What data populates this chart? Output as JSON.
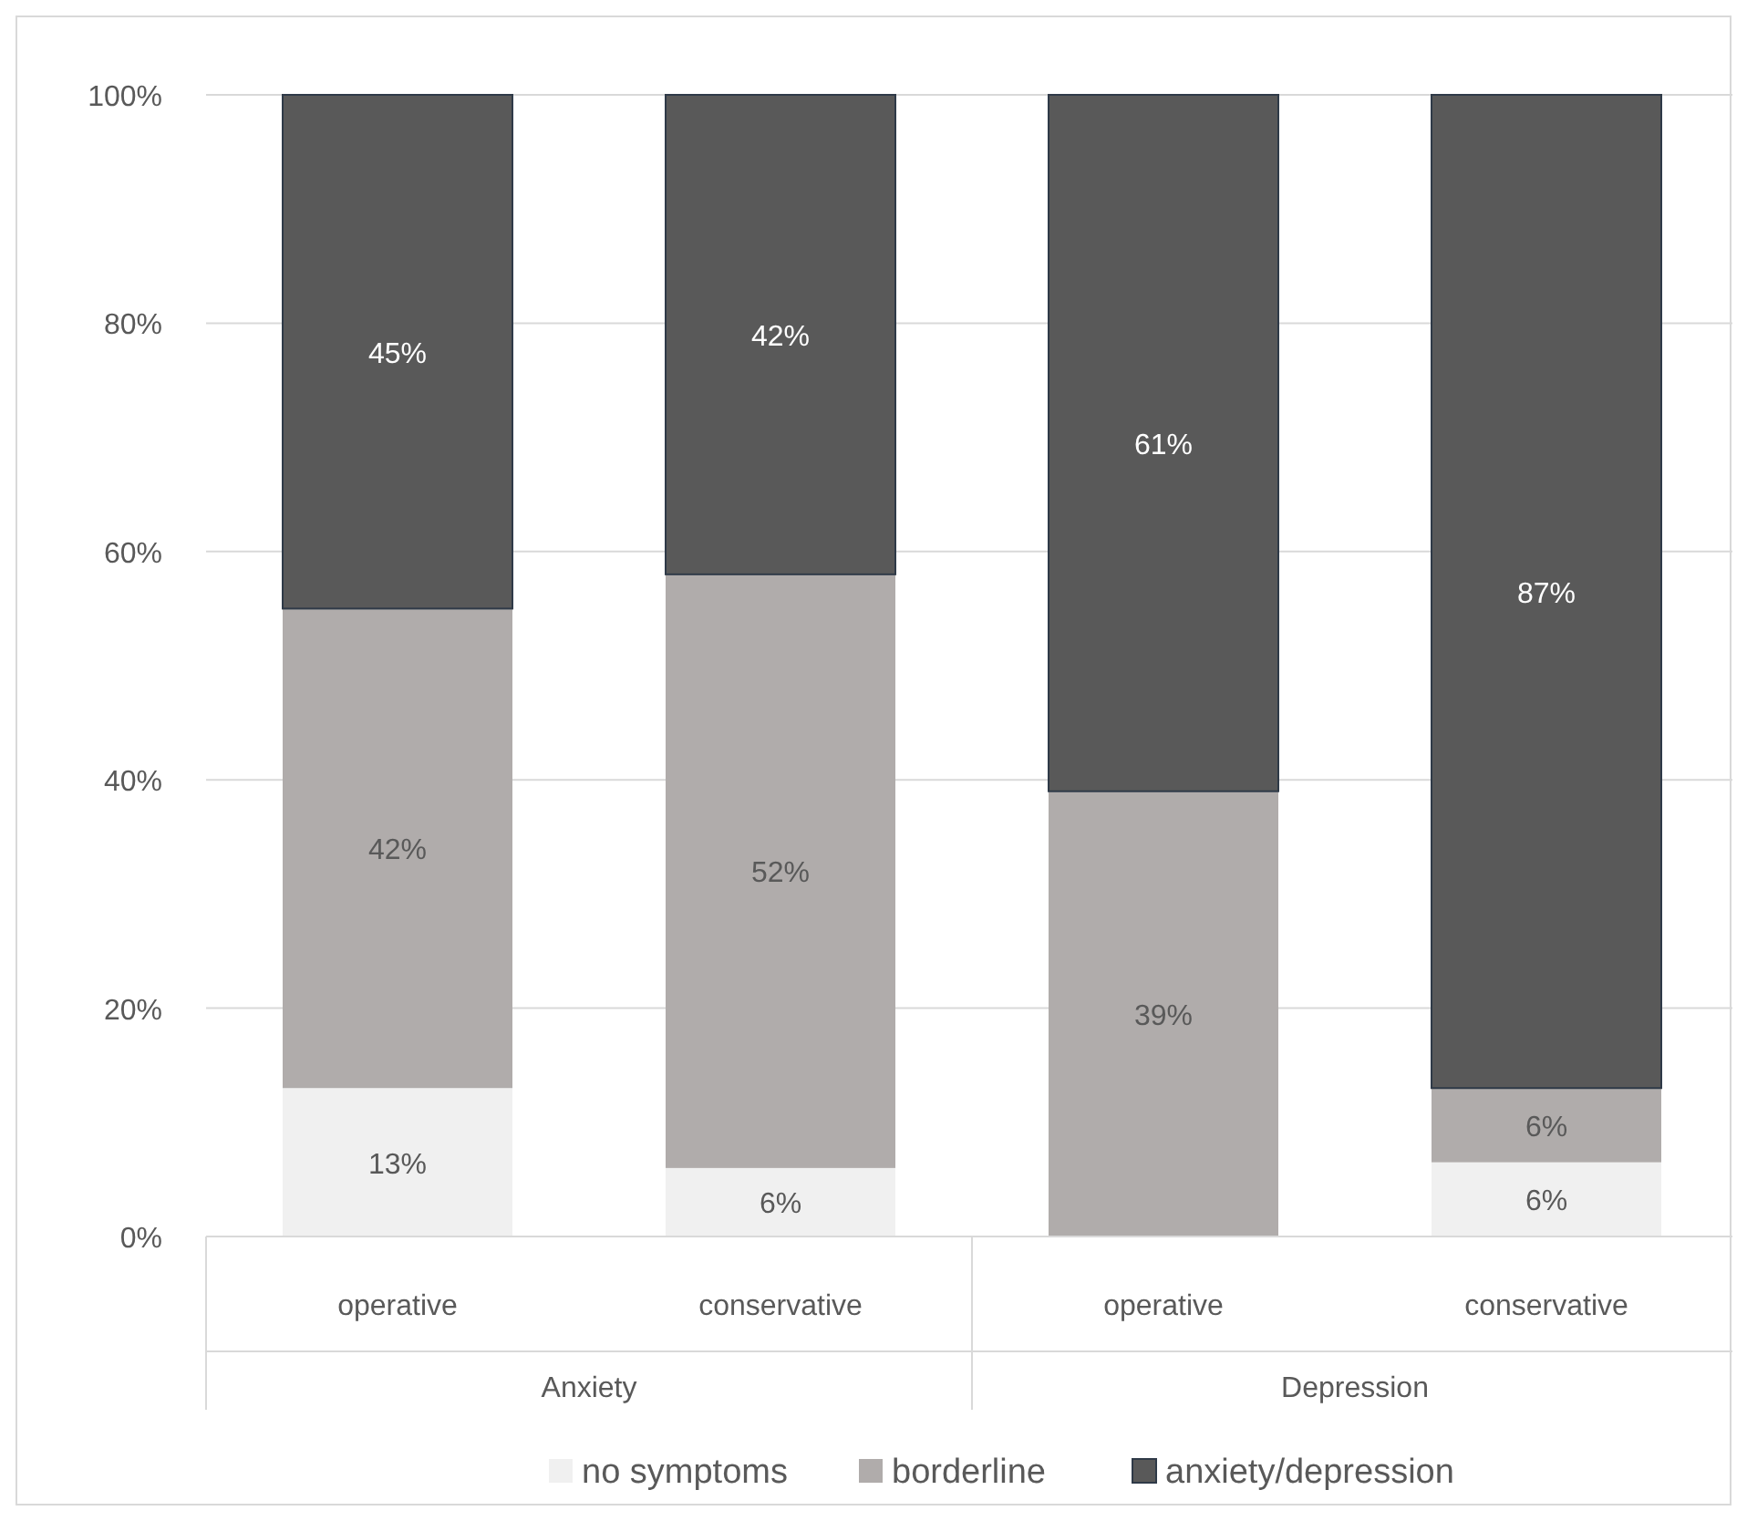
{
  "chart_data": {
    "type": "bar",
    "stacked": true,
    "categories": [
      "operative",
      "conservative",
      "operative",
      "conservative"
    ],
    "annotations": [
      "Anxiety",
      "Depression"
    ],
    "series": [
      {
        "name": "no symptoms",
        "color": "#f0f0f0",
        "values": [
          13,
          6,
          0,
          6.5
        ],
        "value_labels": [
          "13%",
          "6%",
          null,
          "6%"
        ]
      },
      {
        "name": "borderline",
        "color": "#b0acab",
        "values": [
          42,
          52,
          39,
          6.5
        ],
        "value_labels": [
          "42%",
          "52%",
          "39%",
          "6%"
        ]
      },
      {
        "name": "anxiety/depression",
        "color": "#595959",
        "values": [
          45,
          42,
          61,
          87
        ],
        "value_labels": [
          "45%",
          "42%",
          "61%",
          "87%"
        ]
      }
    ],
    "ylim": [
      0,
      100
    ],
    "yticks": [
      {
        "value": 0,
        "label": "0%"
      },
      {
        "value": 20,
        "label": "20%"
      },
      {
        "value": 40,
        "label": "40%"
      },
      {
        "value": 60,
        "label": "60%"
      },
      {
        "value": 80,
        "label": "80%"
      },
      {
        "value": 100,
        "label": "100%"
      }
    ],
    "grid": "y",
    "legend": "bottom"
  }
}
